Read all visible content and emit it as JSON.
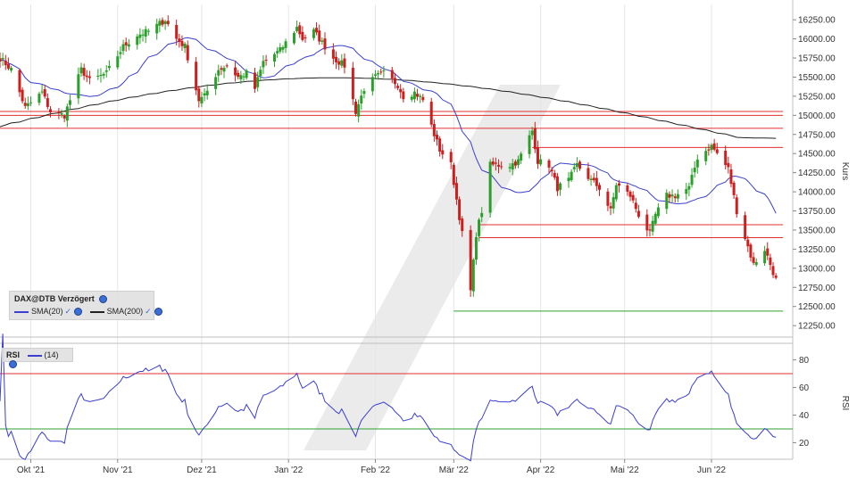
{
  "chart_data": [
    {
      "type": "candlestick",
      "symbol_label": "DAX@DTB Verzögert",
      "ylabel": "Kurs",
      "ylim": [
        12100,
        16450
      ],
      "y_ticks": [
        "16250.00",
        "16000.00",
        "15750.00",
        "15500.00",
        "15250.00",
        "15000.00",
        "14750.00",
        "14500.00",
        "14250.00",
        "14000.00",
        "13750.00",
        "13500.00",
        "13250.00",
        "13000.00",
        "12750.00",
        "12500.00",
        "12250.00"
      ],
      "x_ticks": [
        "Okt '21",
        "Nov '21",
        "Dez '21",
        "Jan '22",
        "Feb '22",
        "Mär '22",
        "Apr '22",
        "Mai '22",
        "Jun '22"
      ],
      "legend": [
        {
          "name": "SMA(20)",
          "color": "#3a3fd0"
        },
        {
          "name": "SMA(200)",
          "color": "#222222"
        }
      ],
      "colors": {
        "up": "#2aa02a",
        "down": "#cc1f1f",
        "sma20": "#3a3fd0",
        "sma200": "#222222",
        "resistance": "#e03030",
        "support": "#2ea02e"
      },
      "horizontal_lines": [
        {
          "level": 15050,
          "color": "red",
          "from": "2021-09-20",
          "to": "2022-06-24"
        },
        {
          "level": 15000,
          "color": "red",
          "from": "2021-09-20",
          "to": "2022-06-24"
        },
        {
          "level": 14830,
          "color": "red",
          "from": "2021-09-20",
          "to": "2022-06-24"
        },
        {
          "level": 14580,
          "color": "red",
          "from": "2022-03-29",
          "to": "2022-06-24"
        },
        {
          "level": 13570,
          "color": "red",
          "from": "2022-03-10",
          "to": "2022-06-24"
        },
        {
          "level": 13400,
          "color": "red",
          "from": "2022-03-10",
          "to": "2022-06-24"
        },
        {
          "level": 12440,
          "color": "green",
          "from": "2022-03-01",
          "to": "2022-06-24"
        }
      ],
      "close_series_anchors": [
        [
          "2021-09-20",
          15750
        ],
        [
          "2021-09-24",
          15600
        ],
        [
          "2021-09-29",
          15100
        ],
        [
          "2021-10-05",
          15300
        ],
        [
          "2021-10-08",
          15050
        ],
        [
          "2021-10-13",
          15000
        ],
        [
          "2021-10-19",
          15600
        ],
        [
          "2021-10-22",
          15450
        ],
        [
          "2021-10-28",
          15550
        ],
        [
          "2021-11-03",
          15900
        ],
        [
          "2021-11-08",
          16050
        ],
        [
          "2021-11-12",
          16100
        ],
        [
          "2021-11-16",
          16200
        ],
        [
          "2021-11-18",
          16250
        ],
        [
          "2021-11-22",
          16000
        ],
        [
          "2021-11-25",
          15900
        ],
        [
          "2021-11-30",
          15200
        ],
        [
          "2021-12-02",
          15250
        ],
        [
          "2021-12-07",
          15600
        ],
        [
          "2021-12-10",
          15650
        ],
        [
          "2021-12-14",
          15500
        ],
        [
          "2021-12-17",
          15550
        ],
        [
          "2021-12-20",
          15350
        ],
        [
          "2021-12-23",
          15700
        ],
        [
          "2021-12-29",
          15850
        ],
        [
          "2022-01-04",
          16150
        ],
        [
          "2022-01-06",
          16000
        ],
        [
          "2022-01-10",
          16100
        ],
        [
          "2022-01-13",
          15950
        ],
        [
          "2022-01-17",
          15750
        ],
        [
          "2022-01-21",
          15650
        ],
        [
          "2022-01-25",
          15050
        ],
        [
          "2022-01-28",
          15350
        ],
        [
          "2022-02-01",
          15500
        ],
        [
          "2022-02-04",
          15550
        ],
        [
          "2022-02-09",
          15400
        ],
        [
          "2022-02-11",
          15250
        ],
        [
          "2022-02-15",
          15300
        ],
        [
          "2022-02-18",
          15200
        ],
        [
          "2022-02-22",
          14750
        ],
        [
          "2022-02-24",
          14550
        ],
        [
          "2022-02-28",
          14350
        ],
        [
          "2022-03-02",
          13900
        ],
        [
          "2022-03-04",
          13450
        ],
        [
          "2022-03-07",
          12700
        ],
        [
          "2022-03-09",
          13450
        ],
        [
          "2022-03-11",
          13750
        ],
        [
          "2022-03-14",
          14350
        ],
        [
          "2022-03-17",
          14350
        ],
        [
          "2022-03-21",
          14350
        ],
        [
          "2022-03-24",
          14400
        ],
        [
          "2022-03-29",
          14800
        ],
        [
          "2022-03-31",
          14400
        ],
        [
          "2022-04-04",
          14350
        ],
        [
          "2022-04-07",
          14050
        ],
        [
          "2022-04-11",
          14150
        ],
        [
          "2022-04-14",
          14350
        ],
        [
          "2022-04-19",
          14150
        ],
        [
          "2022-04-22",
          14050
        ],
        [
          "2022-04-26",
          13750
        ],
        [
          "2022-04-28",
          14100
        ],
        [
          "2022-05-03",
          13950
        ],
        [
          "2022-05-06",
          13700
        ],
        [
          "2022-05-10",
          13450
        ],
        [
          "2022-05-12",
          13700
        ],
        [
          "2022-05-16",
          13950
        ],
        [
          "2022-05-19",
          13950
        ],
        [
          "2022-05-24",
          14050
        ],
        [
          "2022-05-27",
          14450
        ],
        [
          "2022-06-01",
          14600
        ],
        [
          "2022-06-03",
          14500
        ],
        [
          "2022-06-07",
          14300
        ],
        [
          "2022-06-10",
          13750
        ],
        [
          "2022-06-13",
          13400
        ],
        [
          "2022-06-16",
          13050
        ],
        [
          "2022-06-20",
          13250
        ],
        [
          "2022-06-22",
          13050
        ],
        [
          "2022-06-24",
          12850
        ]
      ]
    },
    {
      "type": "line",
      "name": "RSI",
      "legend": [
        {
          "name": "RSI",
          "period_label": "(14)",
          "color": "#3a3fd0"
        }
      ],
      "ylim": [
        8,
        92
      ],
      "y_ticks": [
        80,
        60,
        40,
        20
      ],
      "ylabel": "RSI",
      "upper_line": 70,
      "lower_line": 30,
      "colors": {
        "line": "#3a3fd0",
        "upper": "#e03030",
        "lower": "#2ea02e"
      }
    }
  ]
}
